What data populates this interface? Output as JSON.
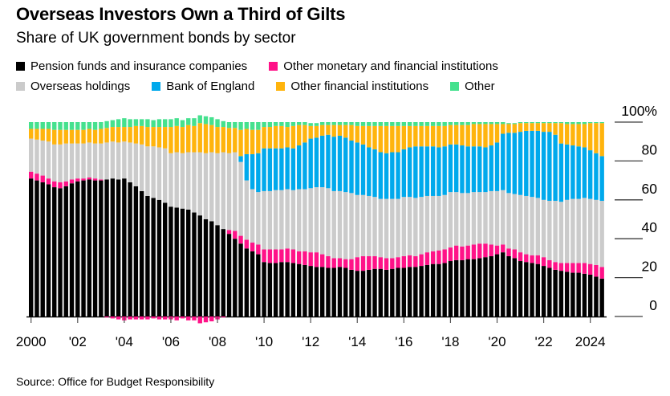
{
  "title": "Overseas Investors Own a Third of Gilts",
  "subtitle": "Share of UK government bonds by sector",
  "source": "Source: Office for Budget Responsibility",
  "axis": {
    "axis_color": "#000000",
    "tick_color": "#3d3d3d",
    "y_top_label": "100%"
  },
  "chart_data": {
    "type": "bar",
    "stacked": true,
    "frequency": "quarterly",
    "x_start": "2000Q1",
    "x_end": "2024Q3",
    "ylim": [
      -5,
      105
    ],
    "grid": "off",
    "legend_position": "top",
    "y_ticks": [
      100,
      80,
      60,
      40,
      20,
      0
    ],
    "x_ticks": [
      {
        "label": "2000",
        "index": 0
      },
      {
        "label": "'02",
        "index": 8
      },
      {
        "label": "'04",
        "index": 16
      },
      {
        "label": "'06",
        "index": 24
      },
      {
        "label": "'08",
        "index": 32
      },
      {
        "label": "'10",
        "index": 40
      },
      {
        "label": "'12",
        "index": 48
      },
      {
        "label": "'14",
        "index": 56
      },
      {
        "label": "'16",
        "index": 64
      },
      {
        "label": "'18",
        "index": 72
      },
      {
        "label": "'20",
        "index": 80
      },
      {
        "label": "'22",
        "index": 88
      },
      {
        "label": "2024",
        "index": 96
      }
    ],
    "series": [
      {
        "name": "Pension funds and insurance companies",
        "color": "#000000",
        "values": [
          71,
          70,
          69,
          68,
          66.5,
          66,
          67,
          68.5,
          69.5,
          70,
          70.5,
          70,
          70,
          70.5,
          71,
          70.5,
          71,
          69,
          67,
          64.5,
          62,
          61,
          60,
          58.5,
          56.5,
          56,
          55.5,
          55,
          53.5,
          52,
          50,
          49,
          47,
          45,
          42.5,
          40,
          37.5,
          35,
          33.5,
          32,
          28,
          27.5,
          27.5,
          28,
          28,
          27.5,
          27,
          26.5,
          26,
          25.5,
          25.5,
          25,
          25,
          25.5,
          25,
          24,
          23.5,
          23.5,
          24,
          24.5,
          24.5,
          24,
          24.5,
          25,
          25,
          25.5,
          25.5,
          26,
          26.5,
          27,
          27,
          27.5,
          28.5,
          29,
          29,
          29.5,
          29.5,
          30,
          30.5,
          31,
          32,
          33,
          31,
          30,
          28.5,
          28,
          27.5,
          27,
          26,
          25,
          24,
          23.5,
          23,
          22.5,
          22.5,
          22,
          21.5,
          20.5,
          19.5
        ]
      },
      {
        "name": "Other monetary and financial institutions",
        "color": "#ff1288",
        "values": [
          3.5,
          3.5,
          3.5,
          3,
          3,
          3,
          2.5,
          2,
          1.5,
          1,
          1,
          1,
          0.5,
          -0.5,
          -1,
          -1.5,
          -2,
          -1.5,
          -1.5,
          -1.5,
          -1.5,
          -1,
          -1.5,
          -1.5,
          -1.5,
          -2,
          -1,
          -2,
          -2,
          -3.5,
          -3,
          -2.5,
          -1.5,
          -0.5,
          2,
          4,
          4,
          4.5,
          4.5,
          5,
          6.5,
          7,
          7,
          6.5,
          7,
          7,
          6.5,
          7,
          7,
          7.5,
          6.5,
          6,
          5,
          4.5,
          4.5,
          5.5,
          7,
          7.5,
          7,
          6.5,
          6,
          6,
          5.5,
          5.5,
          6,
          6,
          5.5,
          6,
          6.5,
          6.5,
          7,
          7,
          7,
          7.5,
          7,
          7,
          7.5,
          7.5,
          7,
          6,
          4.5,
          4,
          4,
          4.5,
          4.5,
          4,
          4,
          4.5,
          4.5,
          4,
          4,
          4,
          4.5,
          5,
          5,
          5.5,
          5.5,
          6,
          6
        ]
      },
      {
        "name": "Overseas holdings",
        "color": "#cbcbcb",
        "values": [
          17,
          17.5,
          18,
          19,
          19,
          19.5,
          19.5,
          18.5,
          18,
          18,
          18,
          18,
          18.5,
          19,
          19,
          19,
          19,
          20.5,
          22,
          24,
          25.5,
          26.5,
          27,
          28,
          27.5,
          28.5,
          28.5,
          29.5,
          31,
          32.5,
          34,
          35.5,
          37,
          39.5,
          39.5,
          40.5,
          38,
          30.5,
          27.5,
          27,
          30,
          30,
          30.5,
          30.5,
          30.5,
          30.5,
          32,
          32,
          33,
          33.5,
          34.5,
          35,
          34.5,
          34.5,
          34.5,
          34,
          32,
          31.5,
          31,
          30.5,
          30,
          30.5,
          30.5,
          30,
          30.5,
          30,
          30,
          29.5,
          29,
          28.5,
          28,
          28,
          28.5,
          27.5,
          27.5,
          27,
          27,
          26.5,
          26.5,
          27.5,
          28,
          28,
          28.5,
          28.5,
          29.5,
          30,
          30,
          29.5,
          29.5,
          30.5,
          31.5,
          31.5,
          32.5,
          33,
          33,
          33.5,
          33.5,
          33.5,
          34
        ]
      },
      {
        "name": "Bank of England",
        "color": "#00a9ec",
        "values": [
          0,
          0,
          0,
          0,
          0,
          0,
          0,
          0,
          0,
          0,
          0,
          0,
          0,
          0,
          0,
          0,
          0,
          0,
          0,
          0,
          0,
          0,
          0,
          0,
          0,
          0,
          0,
          0,
          0,
          0,
          0,
          0,
          0,
          0,
          0,
          0,
          3,
          13.5,
          18,
          20,
          22,
          22,
          21.5,
          21.5,
          21.5,
          21.5,
          22.5,
          24,
          25.5,
          25.5,
          26.5,
          27.5,
          28,
          28.5,
          28,
          27,
          27,
          26,
          25,
          24.5,
          24,
          23.5,
          24,
          24,
          24.5,
          25.5,
          26.5,
          26,
          25.5,
          25.5,
          25,
          25,
          24.5,
          24.5,
          24.5,
          24,
          23.5,
          23.5,
          23,
          23.5,
          25,
          29,
          31,
          31.5,
          32.5,
          33.5,
          34,
          34.5,
          35,
          35.5,
          34,
          30,
          28.5,
          27.5,
          27,
          26,
          25,
          24,
          23
        ]
      },
      {
        "name": "Other financial institutions",
        "color": "#ffb40d",
        "values": [
          5,
          5.5,
          6,
          6.5,
          7.5,
          7.5,
          7,
          7,
          7,
          7,
          7,
          7,
          7.5,
          7.5,
          7.5,
          8,
          7.5,
          8,
          9,
          9.5,
          10,
          10,
          10.5,
          11,
          13.5,
          13.5,
          13.5,
          14,
          13.5,
          15,
          15,
          14,
          13.5,
          13,
          13,
          12.5,
          13.5,
          13,
          12.5,
          12,
          11,
          11,
          11.5,
          11.5,
          10.5,
          11.5,
          10.5,
          9,
          6.5,
          6,
          5.5,
          5,
          6,
          5.5,
          6.5,
          8,
          8.5,
          9.5,
          11,
          12,
          13.5,
          14,
          13.5,
          13.5,
          12,
          11,
          10.5,
          10.5,
          10.5,
          10.5,
          11,
          10.5,
          10,
          10,
          10.5,
          11,
          11.5,
          11.5,
          12,
          11,
          9.5,
          5,
          4.5,
          4.5,
          4.5,
          4,
          4,
          4,
          4.5,
          4.5,
          6,
          10.5,
          10.5,
          11,
          11.5,
          12,
          14,
          15.5,
          17
        ]
      },
      {
        "name": "Other",
        "color": "#45e18e",
        "values": [
          3.5,
          3.5,
          3.5,
          3.5,
          4,
          4,
          4,
          4,
          4,
          4,
          3.5,
          4,
          3.5,
          3.5,
          3.5,
          4,
          4.5,
          4,
          3.5,
          3.5,
          4,
          3.5,
          4,
          4,
          4,
          4,
          3.5,
          3.5,
          4,
          4,
          4,
          4,
          4,
          3,
          3,
          3,
          4,
          3.5,
          4,
          4,
          2.5,
          2.5,
          2,
          2,
          2.5,
          2,
          1.5,
          1.5,
          1.5,
          1.5,
          1.5,
          1.5,
          1.5,
          1.5,
          1.5,
          1.5,
          2,
          2,
          2,
          2,
          2,
          2,
          2,
          2,
          2,
          2,
          2,
          2,
          2,
          2,
          2,
          2,
          1.5,
          1.5,
          1.5,
          1.5,
          1,
          1,
          1,
          1,
          1,
          1,
          0.5,
          0.5,
          0.5,
          0.5,
          0.5,
          0.5,
          0.5,
          0.5,
          0.5,
          0.5,
          1,
          1,
          1,
          1,
          0.5,
          0.5,
          0.5
        ]
      }
    ]
  }
}
